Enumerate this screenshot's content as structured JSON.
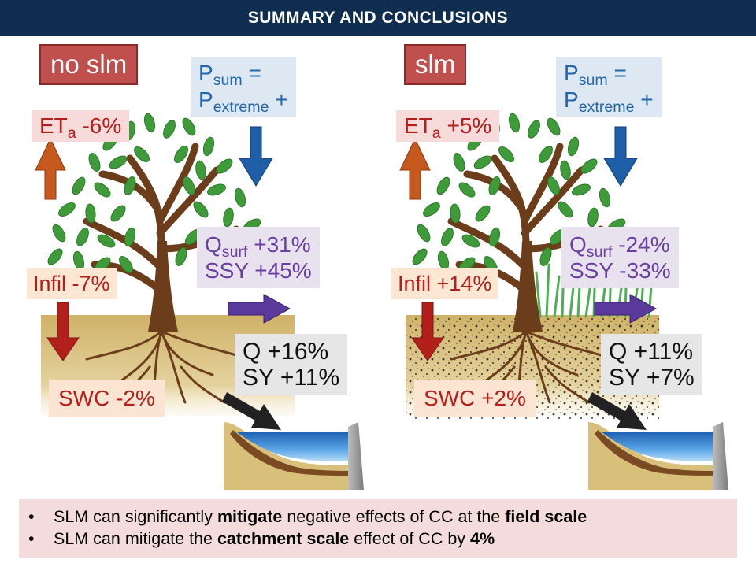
{
  "title": "SUMMARY AND CONCLUSIONS",
  "panels": [
    {
      "scenario": "no slm",
      "precip_line1": "P",
      "precip_sub1": "sum",
      "precip_eq": " =",
      "precip_line2": "P",
      "precip_sub2": "extreme",
      "precip_plus": " +",
      "eta_main": "ET",
      "eta_sub": "a",
      "eta_value": " -6%",
      "infil": "Infil -7%",
      "qsurf_main": "Q",
      "qsurf_sub": "surf",
      "qsurf_value": " +31%",
      "ssy": "SSY +45%",
      "q": "Q +16%",
      "sy": "SY +11%",
      "swc": "SWC -2%"
    },
    {
      "scenario": "slm",
      "precip_line1": "P",
      "precip_sub1": "sum",
      "precip_eq": " =",
      "precip_line2": "P",
      "precip_sub2": "extreme",
      "precip_plus": " +",
      "eta_main": "ET",
      "eta_sub": "a",
      "eta_value": " +5%",
      "infil": "Infil +14%",
      "qsurf_main": "Q",
      "qsurf_sub": "surf",
      "qsurf_value": " -24%",
      "ssy": "SSY -33%",
      "q": "Q +11%",
      "sy": "SY +7%",
      "swc": "SWC +2%"
    }
  ],
  "conclusions": [
    {
      "pre": "SLM can significantly ",
      "bold1": "mitigate",
      "mid": " negative effects of CC at the ",
      "bold2": "field scale",
      "post": ""
    },
    {
      "pre": "SLM can mitigate the ",
      "bold1": "catchment scale",
      "mid": " effect of CC by ",
      "bold2": "4%",
      "post": ""
    }
  ],
  "colors": {
    "header": "#0f2d4f",
    "scenario_box": "#c0504d",
    "arrow_et": "#c65a1e",
    "arrow_precip": "#1f5fa8",
    "arrow_infil": "#b3201c",
    "arrow_flow": "#5b3a9e",
    "arrow_sediment": "#222222",
    "soil": "#d8c07a",
    "water": "#3a86d0"
  },
  "icons": [
    "tree-icon",
    "grass-icon",
    "reservoir-icon",
    "dam-icon"
  ]
}
